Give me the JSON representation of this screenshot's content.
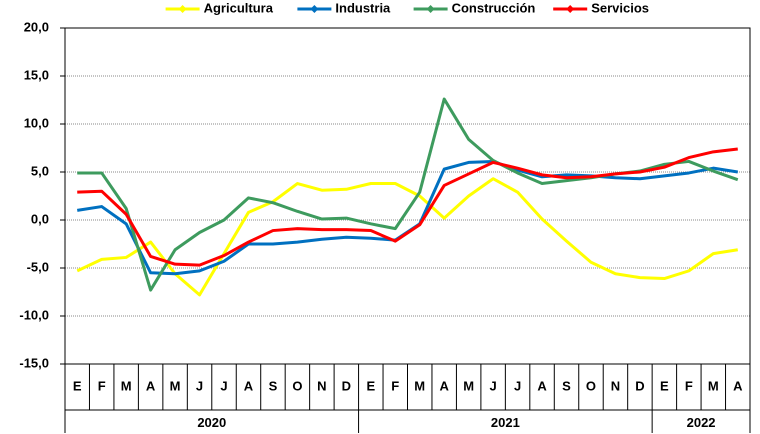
{
  "chart_data": {
    "type": "line",
    "groups": [
      {
        "label": "2020",
        "categories": [
          "E",
          "F",
          "M",
          "A",
          "M",
          "J",
          "J",
          "A",
          "S",
          "O",
          "N",
          "D"
        ]
      },
      {
        "label": "2021",
        "categories": [
          "E",
          "F",
          "M",
          "A",
          "M",
          "J",
          "J",
          "A",
          "S",
          "O",
          "N",
          "D"
        ]
      },
      {
        "label": "2022",
        "categories": [
          "E",
          "F",
          "M",
          "A"
        ]
      }
    ],
    "series": [
      {
        "name": "Agricultura",
        "color": "#ffff00",
        "values": [
          -5.3,
          -4.1,
          -3.9,
          -2.3,
          -5.6,
          -7.8,
          -3.5,
          0.8,
          1.9,
          3.8,
          3.1,
          3.2,
          3.8,
          3.8,
          2.5,
          0.2,
          2.5,
          4.3,
          2.9,
          0.1,
          -2.2,
          -4.4,
          -5.6,
          -6.0,
          -6.1,
          -5.3,
          -3.5,
          -3.1
        ]
      },
      {
        "name": "Industria",
        "color": "#0070c0",
        "values": [
          1.0,
          1.4,
          -0.4,
          -5.5,
          -5.6,
          -5.3,
          -4.3,
          -2.5,
          -2.5,
          -2.3,
          -2.0,
          -1.8,
          -1.9,
          -2.1,
          -0.4,
          5.3,
          6.0,
          6.1,
          5.2,
          4.5,
          4.7,
          4.6,
          4.4,
          4.3,
          4.6,
          4.9,
          5.4,
          5.0
        ]
      },
      {
        "name": "Construcción",
        "color": "#3e9b5e",
        "values": [
          4.9,
          4.9,
          1.2,
          -7.3,
          -3.1,
          -1.3,
          0.0,
          2.3,
          1.8,
          0.9,
          0.1,
          0.2,
          -0.4,
          -0.9,
          2.9,
          12.6,
          8.4,
          6.2,
          4.9,
          3.8,
          4.1,
          4.4,
          4.8,
          5.1,
          5.8,
          6.1,
          5.1,
          4.2
        ]
      },
      {
        "name": "Servicios",
        "color": "#ff0000",
        "values": [
          2.9,
          3.0,
          0.6,
          -3.8,
          -4.6,
          -4.7,
          -3.7,
          -2.3,
          -1.1,
          -0.9,
          -1.0,
          -1.0,
          -1.1,
          -2.2,
          -0.5,
          3.6,
          4.8,
          6.0,
          5.4,
          4.7,
          4.4,
          4.5,
          4.8,
          5.0,
          5.5,
          6.5,
          7.1,
          7.4
        ]
      }
    ],
    "ylim": [
      -15,
      20
    ],
    "yticks": [
      {
        "value": -15,
        "label": "-15,0"
      },
      {
        "value": -10,
        "label": "-10,0"
      },
      {
        "value": -5,
        "label": "-5,0"
      },
      {
        "value": 0,
        "label": "0,0"
      },
      {
        "value": 5,
        "label": "5,0"
      },
      {
        "value": 10,
        "label": "10,0"
      },
      {
        "value": 15,
        "label": "15,0"
      },
      {
        "value": 20,
        "label": "20,0"
      }
    ],
    "grid": true,
    "legend": "top"
  }
}
